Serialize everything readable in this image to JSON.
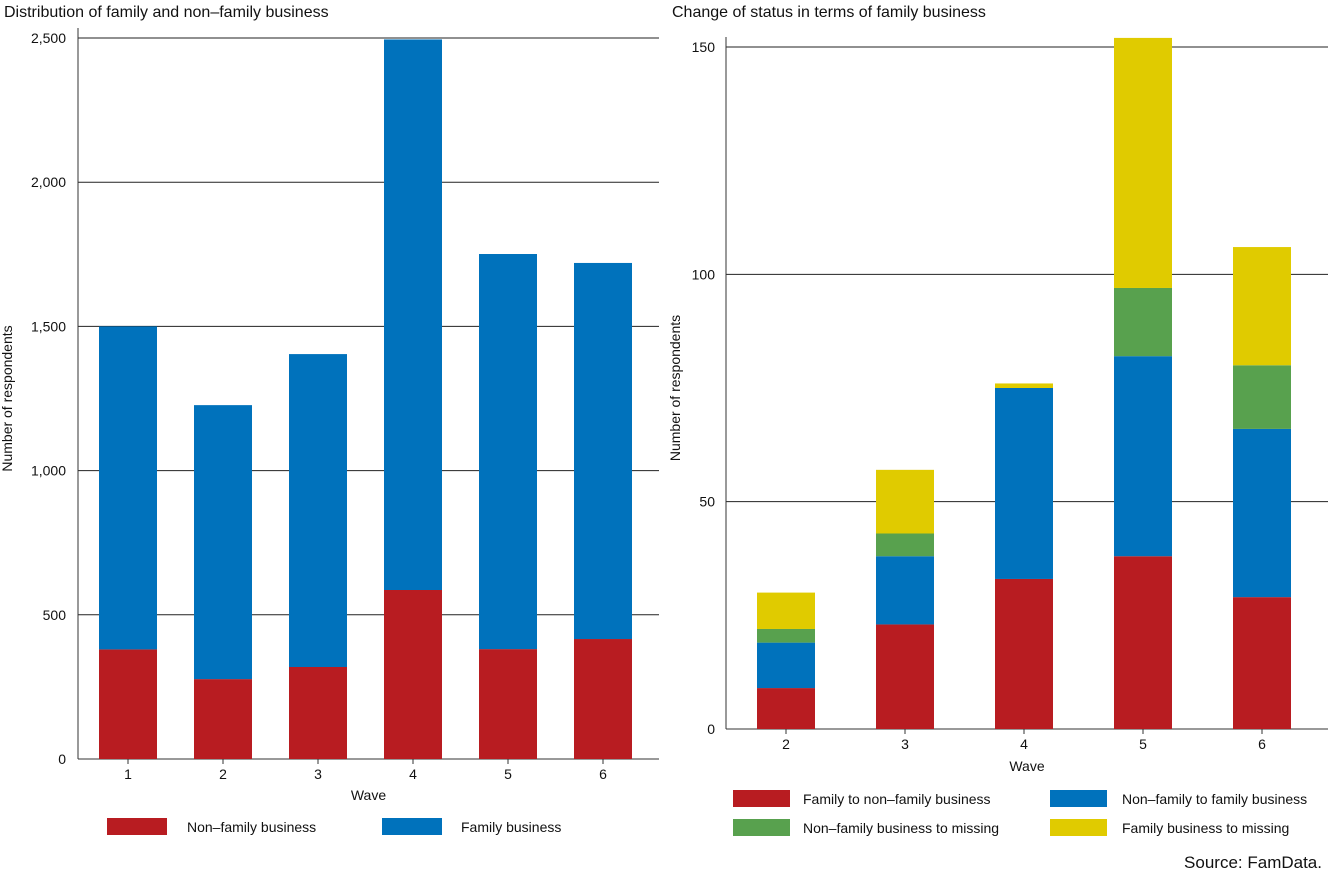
{
  "source": "Source: FamData.",
  "colors": {
    "red": "#b81c21",
    "blue": "#0072bc",
    "green": "#58a14e",
    "yellow": "#e0cb00"
  },
  "chart_data": [
    {
      "type": "bar",
      "stacked": true,
      "title": "Distribution of family and non–family business",
      "xlabel": "Wave",
      "ylabel": "Number of respondents",
      "ylim": [
        0,
        2500
      ],
      "yticks": [
        0,
        500,
        1000,
        1500,
        2000,
        2500
      ],
      "ytick_labels": [
        "0",
        "500",
        "1,000",
        "1,500",
        "2,000",
        "2,500"
      ],
      "grid": true,
      "legend_placement": "bottom",
      "categories": [
        "1",
        "2",
        "3",
        "4",
        "5",
        "6"
      ],
      "series": [
        {
          "name": "Non–family business",
          "color": "#b81c21",
          "values": [
            380,
            277,
            319,
            586,
            381,
            416
          ]
        },
        {
          "name": "Family business",
          "color": "#0072bc",
          "values": [
            1120,
            950,
            1085,
            1909,
            1370,
            1304
          ]
        }
      ]
    },
    {
      "type": "bar",
      "stacked": true,
      "title": "Change of status in terms of family business",
      "xlabel": "Wave",
      "ylabel": "Number of respondents",
      "ylim": [
        0,
        150
      ],
      "yticks": [
        0,
        50,
        100,
        150
      ],
      "ytick_labels": [
        "0",
        "50",
        "100",
        "150"
      ],
      "grid": true,
      "legend_placement": "bottom",
      "categories": [
        "2",
        "3",
        "4",
        "5",
        "6"
      ],
      "series": [
        {
          "name": "Family to non–family business",
          "color": "#b81c21",
          "values": [
            9,
            23,
            33,
            38,
            29
          ]
        },
        {
          "name": "Non–family to family business",
          "color": "#0072bc",
          "values": [
            10,
            15,
            42,
            44,
            37
          ]
        },
        {
          "name": "Non–family business to missing",
          "color": "#58a14e",
          "values": [
            3,
            5,
            0,
            15,
            14
          ]
        },
        {
          "name": "Family business to missing",
          "color": "#e0cb00",
          "values": [
            8,
            14,
            1,
            55,
            26
          ]
        }
      ]
    }
  ]
}
